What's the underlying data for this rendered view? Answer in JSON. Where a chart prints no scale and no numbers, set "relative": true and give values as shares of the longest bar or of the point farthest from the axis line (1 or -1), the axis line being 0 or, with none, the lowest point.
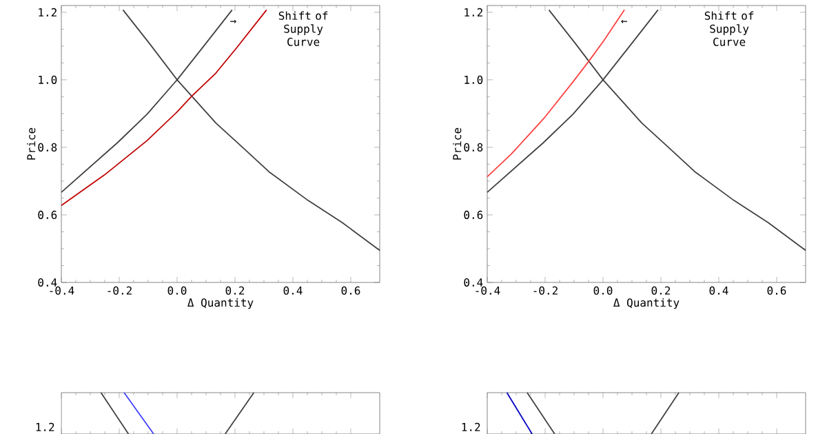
{
  "chart_data": [
    {
      "type": "line",
      "xlabel": "Δ Quantity",
      "ylabel": "Price",
      "xlim": [
        -0.4,
        0.7
      ],
      "ylim": [
        0.4,
        1.22
      ],
      "xticks": [
        -0.4,
        -0.2,
        {
          "value": 0,
          "label": "0.0"
        },
        0.2,
        0.4,
        0.6
      ],
      "yticks": [
        0.4,
        0.6,
        0.8,
        {
          "value": 1,
          "label": "1.0"
        },
        1.2
      ],
      "line_style": "solid",
      "series": [
        {
          "color": "#404040",
          "x": [
            -0.4,
            -0.207,
            -0.104,
            0.0,
            0.094,
            0.19
          ],
          "values": [
            0.667,
            0.813,
            0.898,
            1.0,
            1.102,
            1.207
          ]
        },
        {
          "color": "#404040",
          "x": [
            -0.187,
            -0.096,
            0.0,
            0.134,
            0.23,
            0.317,
            0.452,
            0.571,
            0.7
          ],
          "values": [
            1.207,
            1.108,
            1.0,
            0.872,
            0.797,
            0.728,
            0.643,
            0.577,
            0.495
          ]
        },
        {
          "color": "#c00000",
          "x": [
            -0.4,
            -0.247,
            -0.104,
            0.0,
            0.05,
            0.134,
            0.206,
            0.309
          ],
          "values": [
            0.628,
            0.721,
            0.82,
            0.905,
            0.951,
            1.02,
            1.095,
            1.207
          ]
        }
      ],
      "annotations": [
        "Shift of Supply Curve",
        "→"
      ]
    },
    {
      "type": "line",
      "xlabel": "Δ Quantity",
      "ylabel": "Price",
      "xlim": [
        -0.4,
        0.7
      ],
      "ylim": [
        0.4,
        1.22
      ],
      "xticks": [
        -0.4,
        -0.2,
        {
          "value": 0,
          "label": "0.0"
        },
        0.2,
        0.4,
        0.6
      ],
      "yticks": [
        0.4,
        0.6,
        0.8,
        {
          "value": 1,
          "label": "1.0"
        },
        1.2
      ],
      "line_style": "solid",
      "series": [
        {
          "color": "#404040",
          "x": [
            -0.4,
            -0.207,
            -0.104,
            0.0,
            0.094,
            0.19
          ],
          "values": [
            0.667,
            0.813,
            0.898,
            1.0,
            1.102,
            1.207
          ]
        },
        {
          "color": "#404040",
          "x": [
            -0.187,
            -0.096,
            0.0,
            0.134,
            0.23,
            0.317,
            0.452,
            0.571,
            0.7
          ],
          "values": [
            1.207,
            1.108,
            1.0,
            0.872,
            0.797,
            0.728,
            0.643,
            0.577,
            0.495
          ]
        },
        {
          "color": "#ff4040",
          "x": [
            -0.4,
            -0.317,
            -0.205,
            -0.101,
            -0.05,
            0.002,
            0.074
          ],
          "values": [
            0.713,
            0.78,
            0.885,
            0.997,
            1.054,
            1.115,
            1.207
          ]
        }
      ],
      "annotations": [
        "Shift of Supply Curve",
        "←"
      ]
    },
    {
      "type": "line",
      "relative": true,
      "xlim": [
        -0.4,
        0.7
      ],
      "xticks": [
        -0.4,
        -0.2,
        0,
        0.2,
        0.4,
        0.6
      ],
      "tick_labels": false,
      "line_style": "solid",
      "series": [
        {
          "color": "#404040",
          "x": [
            -0.263,
            -0.168
          ],
          "values": [
            1,
            0
          ]
        },
        {
          "color": "#4040ff",
          "x": [
            -0.183,
            -0.081
          ],
          "values": [
            1,
            0
          ]
        },
        {
          "color": "#404040",
          "x": [
            0.166,
            0.265
          ],
          "values": [
            0,
            1
          ]
        }
      ],
      "annotations": [
        "1.2"
      ]
    },
    {
      "type": "line",
      "relative": true,
      "xlim": [
        -0.4,
        0.7
      ],
      "xticks": [
        -0.4,
        -0.2,
        0,
        0.2,
        0.4,
        0.6
      ],
      "tick_labels": false,
      "line_style": "solid",
      "series": [
        {
          "color": "#0000c0",
          "x": [
            -0.332,
            -0.245
          ],
          "values": [
            1,
            0
          ]
        },
        {
          "color": "#404040",
          "x": [
            -0.262,
            -0.167
          ],
          "values": [
            1,
            0
          ]
        },
        {
          "color": "#404040",
          "x": [
            0.167,
            0.262
          ],
          "values": [
            0,
            1
          ]
        }
      ],
      "annotations": [
        "1.2"
      ]
    }
  ]
}
